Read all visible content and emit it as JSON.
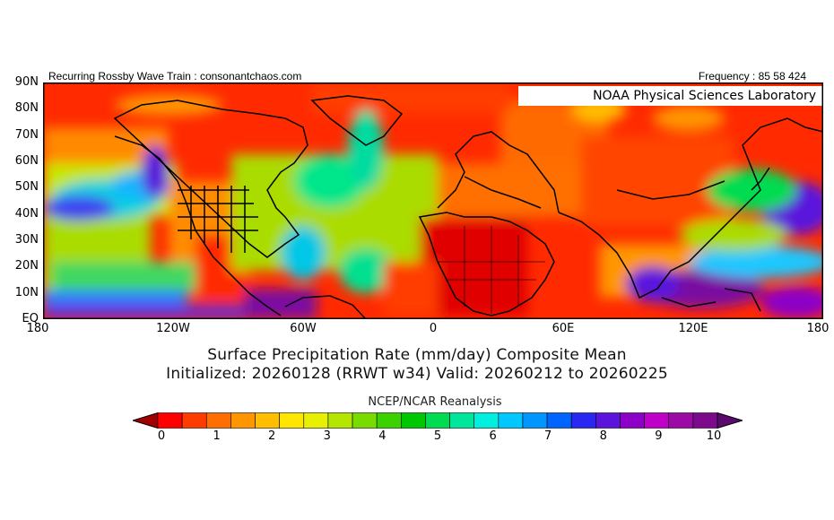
{
  "header": {
    "left": "Recurring Rossby Wave Train : consonantchaos.com",
    "right": "Frequency : 85 58 424"
  },
  "map": {
    "label": "NOAA Physical Sciences Laboratory",
    "lat_ticks": [
      "90N",
      "80N",
      "70N",
      "60N",
      "50N",
      "40N",
      "30N",
      "20N",
      "10N",
      "EQ"
    ],
    "lon_ticks": [
      "180",
      "120W",
      "60W",
      "0",
      "60E",
      "120E",
      "180"
    ]
  },
  "titles": {
    "line1": "Surface Precipitation Rate (mm/day) Composite Mean",
    "line2": "Initialized: 20260128 (RRWT w34) Valid: 20260212 to 20260225",
    "source": "NCEP/NCAR Reanalysis"
  },
  "colorbar": {
    "labels": [
      "0",
      "1",
      "2",
      "3",
      "4",
      "5",
      "6",
      "7",
      "8",
      "9",
      "10"
    ],
    "colors": [
      "#a00000",
      "#ff0000",
      "#ff3c00",
      "#ff6e00",
      "#ff9600",
      "#ffbe00",
      "#ffe600",
      "#e6f000",
      "#b4e600",
      "#78dc00",
      "#3cd200",
      "#00c800",
      "#00dc50",
      "#00e69a",
      "#00f0e0",
      "#00c8ff",
      "#0096ff",
      "#0064ff",
      "#2828f0",
      "#5a14dc",
      "#8c00c8",
      "#be00c8",
      "#9b0aa5",
      "#7d0a8c",
      "#5a0a6e"
    ]
  }
}
